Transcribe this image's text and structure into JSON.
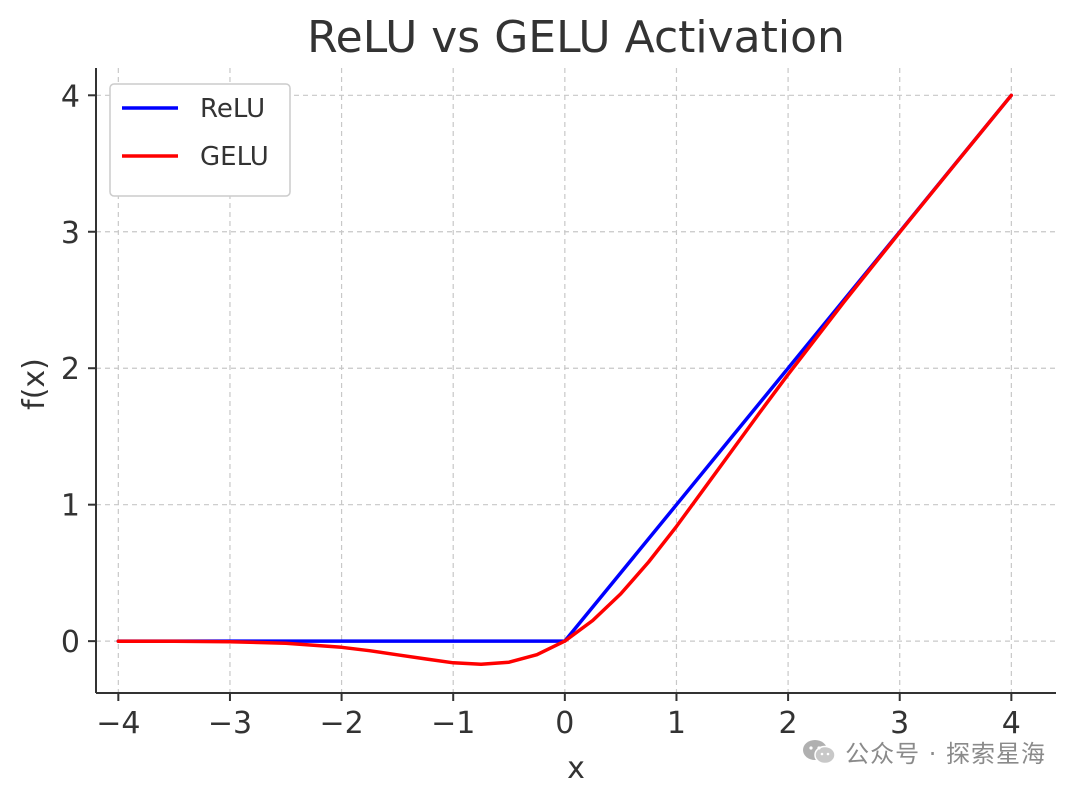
{
  "chart_data": {
    "type": "line",
    "title": "ReLU vs GELU Activation",
    "xlabel": "x",
    "ylabel": "f(x)",
    "xlim": [
      -4.2,
      4.4
    ],
    "ylim": [
      -0.38,
      4.2
    ],
    "xticks": [
      -4,
      -3,
      -2,
      -1,
      0,
      1,
      2,
      3,
      4
    ],
    "xtick_labels": [
      "−4",
      "−3",
      "−2",
      "−1",
      "0",
      "1",
      "2",
      "3",
      "4"
    ],
    "yticks": [
      0,
      1,
      2,
      3,
      4
    ],
    "ytick_labels": [
      "0",
      "1",
      "2",
      "3",
      "4"
    ],
    "grid": true,
    "legend_position": "top-left",
    "series": [
      {
        "name": "ReLU",
        "color": "#0000ff",
        "x": [
          -4,
          -3.5,
          -3,
          -2.5,
          -2,
          -1.5,
          -1,
          -0.5,
          0,
          0.5,
          1,
          1.5,
          2,
          2.5,
          3,
          3.5,
          4
        ],
        "y": [
          0,
          0,
          0,
          0,
          0,
          0,
          0,
          0,
          0,
          0.5,
          1,
          1.5,
          2,
          2.5,
          3,
          3.5,
          4
        ]
      },
      {
        "name": "GELU",
        "color": "#ff0000",
        "x": [
          -4,
          -3.5,
          -3,
          -2.5,
          -2,
          -1.75,
          -1.5,
          -1.25,
          -1,
          -0.75,
          -0.5,
          -0.25,
          0,
          0.25,
          0.5,
          0.75,
          1,
          1.25,
          1.5,
          1.75,
          2,
          2.5,
          3,
          3.5,
          4
        ],
        "y": [
          -0.0001,
          -0.0008,
          -0.004,
          -0.015,
          -0.045,
          -0.07,
          -0.1,
          -0.13,
          -0.159,
          -0.17,
          -0.154,
          -0.099,
          0,
          0.151,
          0.346,
          0.58,
          0.841,
          1.12,
          1.4,
          1.68,
          1.955,
          2.485,
          2.996,
          3.499,
          4.0
        ]
      }
    ]
  },
  "watermark": {
    "icon": "wechat-icon",
    "text": "公众号 · 探索星海"
  }
}
